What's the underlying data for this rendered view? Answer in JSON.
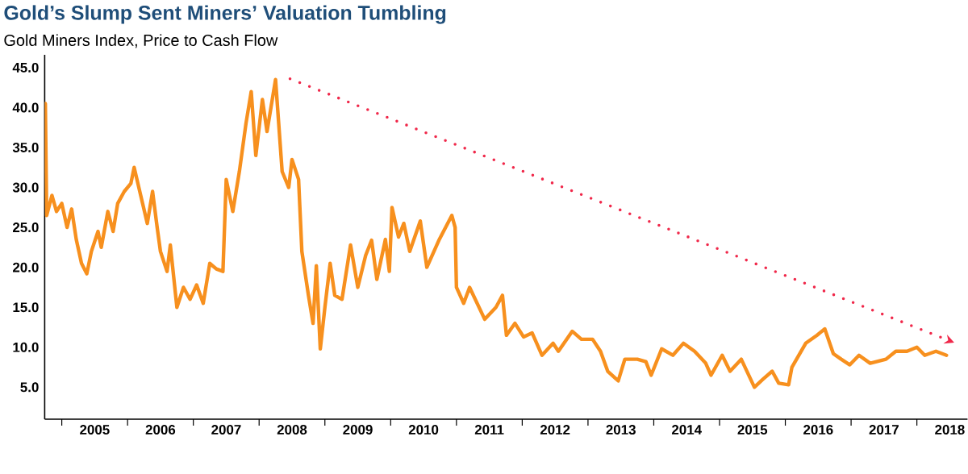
{
  "chart_data": {
    "type": "line",
    "title": "Gold’s Slump Sent Miners’ Valuation Tumbling",
    "subtitle": "Gold Miners Index, Price to Cash Flow",
    "xlim": [
      2004.74,
      2018.77
    ],
    "ylim": [
      1,
      46.6
    ],
    "xticks": [
      {
        "value": 2005,
        "label": null
      },
      {
        "value": 2005.5,
        "label": "2005"
      },
      {
        "value": 2006,
        "label": null
      },
      {
        "value": 2006.5,
        "label": "2006"
      },
      {
        "value": 2007,
        "label": null
      },
      {
        "value": 2007.5,
        "label": "2007"
      },
      {
        "value": 2008,
        "label": null
      },
      {
        "value": 2008.5,
        "label": "2008"
      },
      {
        "value": 2009,
        "label": null
      },
      {
        "value": 2009.5,
        "label": "2009"
      },
      {
        "value": 2010,
        "label": null
      },
      {
        "value": 2010.5,
        "label": "2010"
      },
      {
        "value": 2011,
        "label": null
      },
      {
        "value": 2011.5,
        "label": "2011"
      },
      {
        "value": 2012,
        "label": null
      },
      {
        "value": 2012.5,
        "label": "2012"
      },
      {
        "value": 2013,
        "label": null
      },
      {
        "value": 2013.5,
        "label": "2013"
      },
      {
        "value": 2014,
        "label": null
      },
      {
        "value": 2014.5,
        "label": "2014"
      },
      {
        "value": 2015,
        "label": null
      },
      {
        "value": 2015.5,
        "label": "2015"
      },
      {
        "value": 2016,
        "label": null
      },
      {
        "value": 2016.5,
        "label": "2016"
      },
      {
        "value": 2017,
        "label": null
      },
      {
        "value": 2017.5,
        "label": "2017"
      },
      {
        "value": 2018,
        "label": null
      },
      {
        "value": 2018.5,
        "label": "2018"
      }
    ],
    "yticks": [
      {
        "value": 5,
        "label": "5.0"
      },
      {
        "value": 10,
        "label": "10.0"
      },
      {
        "value": 15,
        "label": "15.0"
      },
      {
        "value": 20,
        "label": "20.0"
      },
      {
        "value": 25,
        "label": "25.0"
      },
      {
        "value": 30,
        "label": "30.0"
      },
      {
        "value": 35,
        "label": "35.0"
      },
      {
        "value": 40,
        "label": "40.0"
      },
      {
        "value": 45,
        "label": "45.0"
      }
    ],
    "series": [
      {
        "color": "#f7901e",
        "line_style": "solid",
        "x": [
          2004.75,
          2004.77,
          2004.85,
          2004.92,
          2005.0,
          2005.08,
          2005.15,
          2005.22,
          2005.3,
          2005.38,
          2005.45,
          2005.55,
          2005.6,
          2005.7,
          2005.78,
          2005.85,
          2005.95,
          2006.05,
          2006.1,
          2006.2,
          2006.3,
          2006.38,
          2006.45,
          2006.5,
          2006.6,
          2006.65,
          2006.75,
          2006.85,
          2006.95,
          2007.05,
          2007.15,
          2007.25,
          2007.35,
          2007.45,
          2007.5,
          2007.6,
          2007.7,
          2007.8,
          2007.88,
          2007.95,
          2008.05,
          2008.12,
          2008.25,
          2008.35,
          2008.45,
          2008.5,
          2008.6,
          2008.65,
          2008.75,
          2008.82,
          2008.87,
          2008.93,
          2009.0,
          2009.08,
          2009.15,
          2009.26,
          2009.39,
          2009.5,
          2009.62,
          2009.71,
          2009.79,
          2009.92,
          2009.98,
          2010.02,
          2010.12,
          2010.2,
          2010.29,
          2010.45,
          2010.55,
          2010.74,
          2010.93,
          2010.98,
          2011.0,
          2011.11,
          2011.2,
          2011.43,
          2011.6,
          2011.7,
          2011.76,
          2011.89,
          2012.02,
          2012.15,
          2012.3,
          2012.47,
          2012.55,
          2012.76,
          2012.9,
          2013.07,
          2013.19,
          2013.3,
          2013.46,
          2013.56,
          2013.75,
          2013.88,
          2013.96,
          2014.12,
          2014.29,
          2014.45,
          2014.62,
          2014.79,
          2014.87,
          2015.04,
          2015.16,
          2015.33,
          2015.53,
          2015.66,
          2015.8,
          2015.9,
          2016.05,
          2016.1,
          2016.31,
          2016.48,
          2016.6,
          2016.73,
          2016.85,
          2016.98,
          2017.12,
          2017.29,
          2017.53,
          2017.68,
          2017.85,
          2018.0,
          2018.12,
          2018.29,
          2018.45
        ],
        "values": [
          40.5,
          26.5,
          29,
          27,
          28,
          25,
          27.3,
          23.5,
          20.5,
          19.2,
          22,
          24.5,
          22.5,
          27,
          24.5,
          28,
          29.5,
          30.5,
          32.5,
          29,
          25.5,
          29.5,
          25,
          22,
          19.5,
          22.8,
          15,
          17.5,
          16,
          17.8,
          15.5,
          20.5,
          19.8,
          19.5,
          31,
          27,
          32,
          38,
          42,
          34,
          41,
          37,
          43.5,
          32,
          30,
          33.5,
          31,
          22,
          16.5,
          13,
          20.2,
          9.8,
          15,
          20.5,
          16.5,
          16,
          22.8,
          17.5,
          21.5,
          23.4,
          18.5,
          23.5,
          19.5,
          27.5,
          23.8,
          25.5,
          22,
          25.8,
          20,
          23.5,
          26.5,
          25,
          17.5,
          15.5,
          17.5,
          13.5,
          15,
          16.5,
          11.5,
          13,
          11.3,
          11.8,
          9,
          10.5,
          9.5,
          12,
          11,
          11,
          9.5,
          7,
          5.8,
          8.5,
          8.5,
          8.2,
          6.5,
          9.8,
          9,
          10.5,
          9.5,
          8,
          6.5,
          9,
          7,
          8.5,
          5,
          6,
          7,
          5.5,
          5.3,
          7.5,
          10.5,
          11.5,
          12.3,
          9.2,
          8.5,
          7.8,
          9,
          8,
          8.5,
          9.5,
          9.5,
          10,
          9,
          9.5,
          9
        ]
      },
      {
        "type": "line",
        "color": "#f0284a",
        "line_style": "dotted",
        "x": [
          2008.47,
          2018.5
        ],
        "values": [
          43.6,
          10.8
        ]
      }
    ]
  }
}
